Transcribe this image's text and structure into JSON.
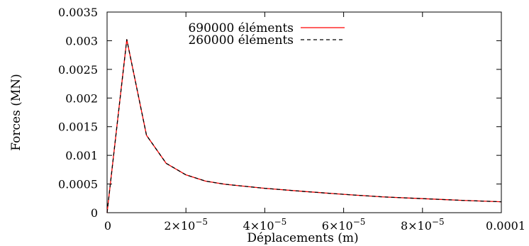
{
  "chart_data": {
    "type": "line",
    "xlabel": "Déplacements (m)",
    "ylabel": "Forces (MN)",
    "xlim": [
      0,
      0.0001
    ],
    "ylim": [
      0,
      0.0035
    ],
    "grid": false,
    "legend_position": "top-center",
    "x_ticks": [
      {
        "value": 0,
        "label": "0"
      },
      {
        "value": 2e-05,
        "label": "2×10−5"
      },
      {
        "value": 4e-05,
        "label": "4×10−5"
      },
      {
        "value": 6e-05,
        "label": "6×10−5"
      },
      {
        "value": 8e-05,
        "label": "8×10−5"
      },
      {
        "value": 0.0001,
        "label": "0.0001"
      }
    ],
    "y_ticks": [
      {
        "value": 0,
        "label": "0"
      },
      {
        "value": 0.0005,
        "label": "0.0005"
      },
      {
        "value": 0.001,
        "label": "0.001"
      },
      {
        "value": 0.0015,
        "label": "0.0015"
      },
      {
        "value": 0.002,
        "label": "0.002"
      },
      {
        "value": 0.0025,
        "label": "0.0025"
      },
      {
        "value": 0.003,
        "label": "0.003"
      },
      {
        "value": 0.0035,
        "label": "0.0035"
      }
    ],
    "series": [
      {
        "name": "690000 éléments",
        "color": "#ff0000",
        "dash": "solid",
        "x": [
          0,
          5e-06,
          1e-05,
          1.5e-05,
          2e-05,
          2.5e-05,
          3e-05,
          4e-05,
          5e-05,
          6e-05,
          7e-05,
          8e-05,
          9e-05,
          0.0001
        ],
        "y": [
          0,
          0.00302,
          0.00135,
          0.00086,
          0.00066,
          0.00055,
          0.000495,
          0.000425,
          0.00037,
          0.00032,
          0.000275,
          0.000245,
          0.000215,
          0.00019
        ]
      },
      {
        "name": "260000 éléments",
        "color": "#000000",
        "dash": "dashed",
        "x": [
          0,
          5e-06,
          1e-05,
          1.5e-05,
          2e-05,
          2.5e-05,
          3e-05,
          4e-05,
          5e-05,
          6e-05,
          7e-05,
          8e-05,
          9e-05,
          0.0001
        ],
        "y": [
          0,
          0.00302,
          0.00135,
          0.00086,
          0.00066,
          0.00055,
          0.000495,
          0.000425,
          0.00037,
          0.00032,
          0.000275,
          0.000245,
          0.000215,
          0.00019
        ]
      }
    ]
  }
}
